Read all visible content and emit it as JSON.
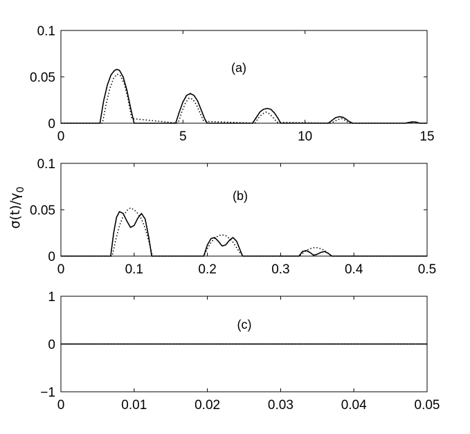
{
  "chart_data": [
    {
      "type": "line",
      "panel_label": "(a)",
      "xlim": [
        0,
        15
      ],
      "ylim": [
        0,
        0.1
      ],
      "xticks": [
        0,
        5,
        10,
        15
      ],
      "yticks": [
        0,
        0.05,
        0.1
      ],
      "xtick_labels": [
        "0",
        "5",
        "10",
        "15"
      ],
      "ytick_labels": [
        "0",
        "0.05",
        "0.1"
      ],
      "grid": false,
      "series": [
        {
          "style": "solid",
          "x": [
            0,
            1.6,
            1.75,
            1.9,
            2.05,
            2.2,
            2.3,
            2.4,
            2.55,
            2.7,
            2.85,
            3.0,
            4.7,
            4.85,
            5.0,
            5.15,
            5.3,
            5.45,
            5.6,
            5.75,
            5.9,
            6.0,
            7.85,
            8.0,
            8.15,
            8.3,
            8.45,
            8.6,
            8.75,
            8.9,
            9.0,
            10.95,
            11.1,
            11.25,
            11.4,
            11.55,
            11.7,
            11.8,
            11.95,
            14.1,
            14.25,
            14.4,
            14.55,
            14.7,
            15
          ],
          "y": [
            0,
            0,
            0.024,
            0.041,
            0.052,
            0.057,
            0.058,
            0.057,
            0.05,
            0.036,
            0.017,
            0,
            0,
            0.012,
            0.023,
            0.03,
            0.032,
            0.03,
            0.024,
            0.014,
            0.004,
            0,
            0,
            0.006,
            0.012,
            0.015,
            0.016,
            0.015,
            0.011,
            0.005,
            0,
            0,
            0.003,
            0.006,
            0.007,
            0.0065,
            0.004,
            0.002,
            0,
            0,
            0.0008,
            0.0015,
            0.0012,
            0,
            0
          ]
        },
        {
          "style": "dotted",
          "x": [
            0,
            1.7,
            1.85,
            2.0,
            2.15,
            2.3,
            2.45,
            2.6,
            2.75,
            2.9,
            4.8,
            4.95,
            5.1,
            5.25,
            5.4,
            5.55,
            5.7,
            5.85,
            7.95,
            8.1,
            8.25,
            8.4,
            8.55,
            8.7,
            8.85,
            11.05,
            11.2,
            11.35,
            11.5,
            11.65,
            11.8,
            14.2,
            14.35,
            14.5,
            14.65,
            15
          ],
          "y": [
            0,
            0,
            0.02,
            0.037,
            0.048,
            0.053,
            0.051,
            0.042,
            0.026,
            0.005,
            0,
            0.012,
            0.022,
            0.027,
            0.026,
            0.02,
            0.011,
            0.002,
            0,
            0.006,
            0.01,
            0.012,
            0.01,
            0.006,
            0.001,
            0,
            0.002,
            0.004,
            0.005,
            0.003,
            0,
            0,
            0.0008,
            0.0012,
            0,
            0
          ]
        }
      ]
    },
    {
      "type": "line",
      "panel_label": "(b)",
      "xlim": [
        0,
        0.5
      ],
      "ylim": [
        0,
        0.1
      ],
      "xticks": [
        0,
        0.1,
        0.2,
        0.3,
        0.4,
        0.5
      ],
      "yticks": [
        0,
        0.05,
        0.1
      ],
      "xtick_labels": [
        "0",
        "0.1",
        "0.2",
        "0.3",
        "0.4",
        "0.5"
      ],
      "ytick_labels": [
        "0",
        "0.05",
        "0.1"
      ],
      "ylabel": "σ(t)/γ",
      "ylabel_subscript": "0",
      "grid": false,
      "series": [
        {
          "style": "solid",
          "x": [
            0,
            0.068,
            0.072,
            0.076,
            0.08,
            0.085,
            0.09,
            0.095,
            0.1,
            0.105,
            0.11,
            0.115,
            0.12,
            0.124,
            0.195,
            0.2,
            0.205,
            0.21,
            0.215,
            0.22,
            0.225,
            0.23,
            0.235,
            0.24,
            0.245,
            0.248,
            0.325,
            0.33,
            0.335,
            0.34,
            0.345,
            0.35,
            0.355,
            0.36,
            0.365,
            0.37,
            0.5
          ],
          "y": [
            0,
            0,
            0.025,
            0.042,
            0.048,
            0.046,
            0.038,
            0.031,
            0.033,
            0.041,
            0.046,
            0.04,
            0.02,
            0,
            0,
            0.012,
            0.019,
            0.02,
            0.016,
            0.011,
            0.012,
            0.017,
            0.02,
            0.016,
            0.006,
            0,
            0,
            0.005,
            0.006,
            0.004,
            0.001,
            0.002,
            0.004,
            0.005,
            0.003,
            0,
            0
          ]
        },
        {
          "style": "dotted",
          "x": [
            0,
            0.07,
            0.075,
            0.08,
            0.085,
            0.09,
            0.095,
            0.1,
            0.105,
            0.11,
            0.115,
            0.12,
            0.125,
            0.195,
            0.2,
            0.205,
            0.21,
            0.215,
            0.22,
            0.225,
            0.23,
            0.235,
            0.24,
            0.245,
            0.25,
            0.325,
            0.33,
            0.335,
            0.34,
            0.345,
            0.35,
            0.355,
            0.36,
            0.365,
            0.37,
            0.5
          ],
          "y": [
            0,
            0,
            0.018,
            0.033,
            0.043,
            0.049,
            0.052,
            0.05,
            0.046,
            0.04,
            0.03,
            0.016,
            0,
            0,
            0.008,
            0.015,
            0.019,
            0.022,
            0.023,
            0.022,
            0.019,
            0.015,
            0.009,
            0.003,
            0,
            0,
            0.003,
            0.006,
            0.008,
            0.009,
            0.009,
            0.008,
            0.006,
            0.003,
            0,
            0
          ]
        }
      ]
    },
    {
      "type": "line",
      "panel_label": "(c)",
      "xlim": [
        0,
        0.05
      ],
      "ylim": [
        -1,
        1
      ],
      "xticks": [
        0,
        0.01,
        0.02,
        0.03,
        0.04,
        0.05
      ],
      "yticks": [
        -1,
        0,
        1
      ],
      "xtick_labels": [
        "0",
        "0.01",
        "0.02",
        "0.03",
        "0.04",
        "0.05"
      ],
      "ytick_labels": [
        "−1",
        "0",
        "1"
      ],
      "grid": false,
      "series": [
        {
          "style": "solid",
          "x": [
            0,
            0.05
          ],
          "y": [
            0,
            0
          ]
        },
        {
          "style": "dotted",
          "x": [
            0,
            0.05
          ],
          "y": [
            0,
            0
          ]
        }
      ]
    }
  ]
}
